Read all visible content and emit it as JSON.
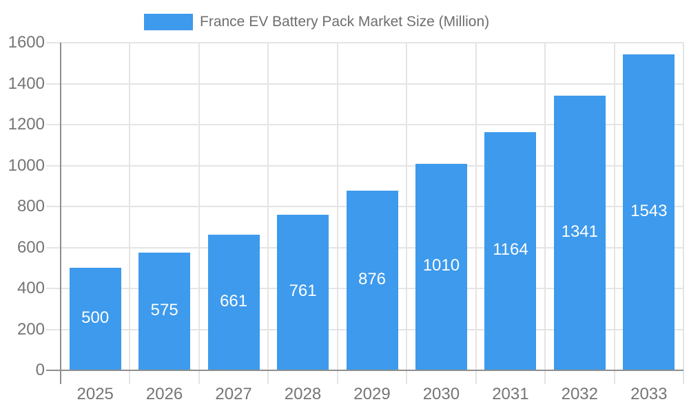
{
  "legend": {
    "label": "France EV Battery Pack Market Size (Million)"
  },
  "chart_data": {
    "type": "bar",
    "title": "France EV Battery Pack Market Size (Million)",
    "categories": [
      "2025",
      "2026",
      "2027",
      "2028",
      "2029",
      "2030",
      "2031",
      "2032",
      "2033"
    ],
    "values": [
      500,
      575,
      661,
      761,
      876,
      1010,
      1164,
      1341,
      1543
    ],
    "xlabel": "",
    "ylabel": "",
    "ylim": [
      0,
      1600
    ],
    "yticks": [
      0,
      200,
      400,
      600,
      800,
      1000,
      1200,
      1400,
      1600
    ],
    "grid": true,
    "legend_position": "top",
    "value_labels": "inside-center",
    "colors": {
      "bar": "#3D9AEC",
      "grid": "#E4E4E4",
      "axis_line": "#8E8E8E",
      "tick_text": "#757575",
      "value_label_text": "#FFFFFF",
      "legend_text": "#6E6E6E",
      "background": "#FFFFFF"
    }
  }
}
